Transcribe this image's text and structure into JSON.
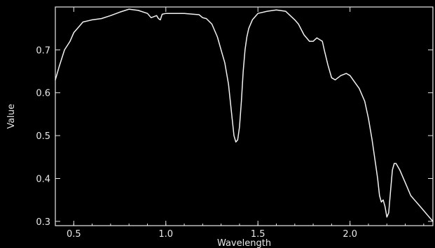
{
  "chart_data": {
    "type": "line",
    "xlabel": "Wavelength",
    "ylabel": "Value",
    "xlim": [
      0.4,
      2.45
    ],
    "ylim": [
      0.29,
      0.8
    ],
    "xticks": [
      0.5,
      1.0,
      1.5,
      2.0
    ],
    "xtick_labels": [
      "0.5",
      "1.0",
      "1.5",
      "2.0"
    ],
    "yticks": [
      0.3,
      0.4,
      0.5,
      0.6,
      0.7
    ],
    "ytick_labels": [
      "0.3",
      "0.4",
      "0.5",
      "0.6",
      "0.7"
    ],
    "grid": false,
    "background": "#000000",
    "series": [
      {
        "color": "#f2f2f2",
        "x": [
          0.4,
          0.42,
          0.45,
          0.48,
          0.5,
          0.53,
          0.55,
          0.6,
          0.65,
          0.7,
          0.75,
          0.8,
          0.85,
          0.9,
          0.92,
          0.95,
          0.96,
          0.97,
          0.98,
          1.0,
          1.05,
          1.1,
          1.15,
          1.18,
          1.2,
          1.22,
          1.25,
          1.28,
          1.3,
          1.32,
          1.34,
          1.35,
          1.36,
          1.37,
          1.38,
          1.39,
          1.4,
          1.41,
          1.42,
          1.43,
          1.44,
          1.45,
          1.47,
          1.5,
          1.55,
          1.6,
          1.65,
          1.7,
          1.72,
          1.75,
          1.78,
          1.8,
          1.82,
          1.85,
          1.86,
          1.88,
          1.9,
          1.92,
          1.95,
          1.98,
          2.0,
          2.02,
          2.05,
          2.08,
          2.1,
          2.12,
          2.14,
          2.15,
          2.16,
          2.17,
          2.18,
          2.19,
          2.2,
          2.21,
          2.22,
          2.23,
          2.24,
          2.25,
          2.27,
          2.3,
          2.33,
          2.35,
          2.37,
          2.4,
          2.42,
          2.45
        ],
        "y": [
          0.63,
          0.66,
          0.7,
          0.72,
          0.74,
          0.755,
          0.765,
          0.77,
          0.773,
          0.78,
          0.788,
          0.795,
          0.792,
          0.785,
          0.775,
          0.78,
          0.773,
          0.77,
          0.783,
          0.785,
          0.785,
          0.785,
          0.783,
          0.782,
          0.775,
          0.773,
          0.76,
          0.73,
          0.7,
          0.67,
          0.62,
          0.58,
          0.54,
          0.5,
          0.485,
          0.49,
          0.52,
          0.58,
          0.65,
          0.7,
          0.73,
          0.75,
          0.77,
          0.785,
          0.79,
          0.793,
          0.79,
          0.77,
          0.76,
          0.735,
          0.72,
          0.72,
          0.728,
          0.72,
          0.7,
          0.665,
          0.635,
          0.63,
          0.64,
          0.645,
          0.64,
          0.628,
          0.61,
          0.58,
          0.54,
          0.49,
          0.43,
          0.4,
          0.36,
          0.345,
          0.35,
          0.335,
          0.31,
          0.32,
          0.37,
          0.42,
          0.435,
          0.435,
          0.42,
          0.39,
          0.36,
          0.35,
          0.34,
          0.325,
          0.315,
          0.3
        ]
      }
    ]
  }
}
